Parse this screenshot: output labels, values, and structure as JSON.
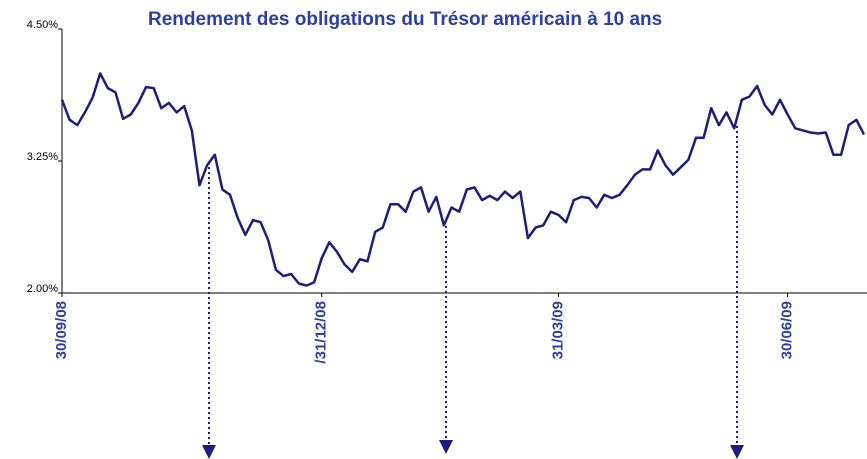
{
  "chart_data": {
    "type": "line",
    "title": "Rendement des obligations du Trésor américain à 10 ans",
    "categories": [
      "30/09/08",
      null,
      null,
      null,
      null,
      null,
      null,
      null,
      null,
      null,
      null,
      null,
      null,
      null,
      null,
      null,
      null,
      null,
      null,
      null,
      null,
      null,
      null,
      null,
      null,
      null,
      null,
      null,
      null,
      null,
      null,
      null,
      null,
      null,
      "/31/12/08",
      null,
      null,
      null,
      null,
      null,
      null,
      null,
      null,
      null,
      null,
      null,
      null,
      null,
      null,
      null,
      null,
      null,
      null,
      null,
      null,
      null,
      null,
      null,
      null,
      null,
      null,
      null,
      null,
      null,
      null,
      "31/03/09",
      null,
      null,
      null,
      null,
      null,
      null,
      null,
      null,
      null,
      null,
      null,
      null,
      null,
      null,
      null,
      null,
      null,
      null,
      null,
      null,
      null,
      null,
      null,
      null,
      null,
      null,
      null,
      null,
      null,
      "30/06/09",
      null,
      null,
      null,
      null,
      null,
      null,
      null,
      null,
      null,
      null
    ],
    "series": [
      {
        "color": "#1c1c82",
        "values": [
          3.83,
          3.64,
          3.59,
          3.71,
          3.85,
          4.08,
          3.94,
          3.9,
          3.65,
          3.69,
          3.8,
          3.95,
          3.94,
          3.75,
          3.8,
          3.71,
          3.77,
          3.54,
          3.02,
          3.21,
          3.31,
          2.98,
          2.93,
          2.71,
          2.55,
          2.69,
          2.67,
          2.5,
          2.22,
          2.16,
          2.18,
          2.09,
          2.07,
          2.1,
          2.33,
          2.48,
          2.39,
          2.27,
          2.2,
          2.32,
          2.3,
          2.58,
          2.62,
          2.84,
          2.84,
          2.77,
          2.96,
          3.0,
          2.77,
          2.91,
          2.64,
          2.81,
          2.77,
          2.98,
          3.0,
          2.88,
          2.92,
          2.88,
          2.96,
          2.9,
          2.96,
          2.52,
          2.62,
          2.64,
          2.77,
          2.74,
          2.67,
          2.88,
          2.91,
          2.9,
          2.81,
          2.93,
          2.9,
          2.93,
          3.02,
          3.12,
          3.17,
          3.17,
          3.35,
          3.21,
          3.12,
          3.19,
          3.26,
          3.47,
          3.47,
          3.75,
          3.59,
          3.71,
          3.56,
          3.83,
          3.86,
          3.96,
          3.78,
          3.69,
          3.83,
          3.69,
          3.56,
          3.54,
          3.52,
          3.51,
          3.52,
          3.31,
          3.31,
          3.59,
          3.64,
          3.5
        ]
      }
    ],
    "ylim": [
      2.0,
      4.5
    ],
    "yticks": [
      {
        "value": 2.0,
        "label": "2.00%"
      },
      {
        "value": 3.25,
        "label": "3.25%"
      },
      {
        "value": 4.5,
        "label": "4.50%"
      }
    ]
  }
}
